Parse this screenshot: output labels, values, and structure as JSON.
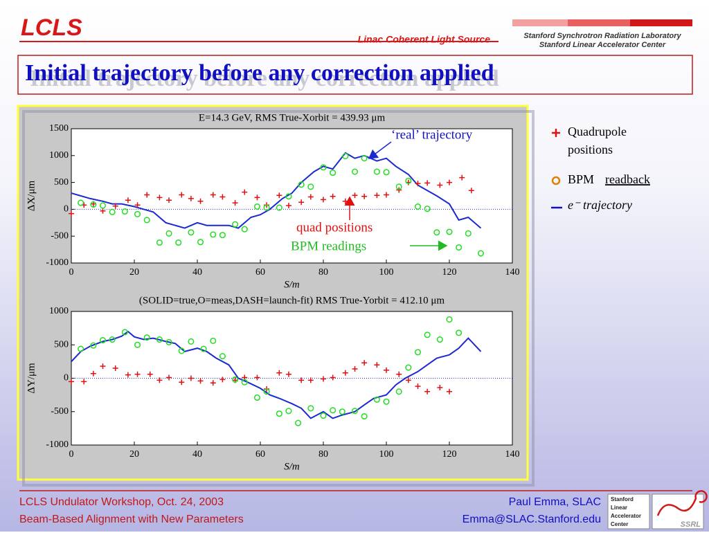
{
  "header": {
    "logo": "LCLS",
    "subtitle": "Linac Coherent Light Source",
    "lab": [
      "Stanford Synchrotron Radiation Laboratory",
      "Stanford Linear Accelerator Center"
    ]
  },
  "title": "Initial trajectory before any correction applied",
  "legend": [
    {
      "lines": [
        "Quadrupole",
        "positions"
      ]
    },
    {
      "lines": [
        "BPM",
        "readback"
      ]
    },
    {
      "lines": [
        "e⁻ trajectory"
      ]
    }
  ],
  "annotations": [
    "‘real’ trajectory",
    "quad positions",
    "BPM readings"
  ],
  "footer": {
    "left": [
      "LCLS Undulator Workshop, Oct. 24, 2003",
      "Beam-Based Alignment with New Parameters"
    ],
    "right": [
      "Paul Emma, SLAC",
      "Emma@SLAC.Stanford.edu"
    ],
    "logo": [
      "Stanford",
      "Linear",
      "Accelerator",
      "Center"
    ],
    "ssrl": "SSRL"
  },
  "chart_data": [
    {
      "type": "line",
      "title": "E=14.3 GeV, RMS True-Xorbit =  439.93 μm",
      "xlabel": "S/m",
      "ylabel": "ΔX/μm",
      "xlim": [
        0,
        140
      ],
      "xticks": [
        0,
        20,
        40,
        60,
        80,
        100,
        120,
        140
      ],
      "ylim": [
        -1000,
        1500
      ],
      "yticks": [
        -1000,
        -500,
        0,
        500,
        1000,
        1500
      ],
      "series": [
        {
          "style": "line",
          "color": "#1a2ad0",
          "x": [
            0,
            3,
            6,
            10,
            13,
            16,
            20,
            23,
            26,
            30,
            33,
            36,
            40,
            43,
            46,
            50,
            53,
            57,
            60,
            63,
            67,
            70,
            73,
            77,
            80,
            83,
            87,
            90,
            93,
            97,
            100,
            103,
            107,
            110,
            113,
            116,
            120,
            123,
            126,
            130
          ],
          "values": [
            300,
            250,
            200,
            150,
            100,
            100,
            50,
            0,
            -50,
            -250,
            -300,
            -350,
            -250,
            -300,
            -300,
            -300,
            -350,
            -150,
            -100,
            0,
            200,
            300,
            500,
            700,
            800,
            750,
            1050,
            950,
            1000,
            900,
            950,
            800,
            650,
            450,
            350,
            250,
            100,
            -200,
            -150,
            -350
          ]
        },
        {
          "style": "plus",
          "color": "#e01010",
          "x": [
            0,
            4,
            7,
            10,
            14,
            18,
            21,
            24,
            28,
            31,
            35,
            38,
            41,
            45,
            48,
            52,
            55,
            59,
            62,
            66,
            69,
            73,
            76,
            80,
            83,
            87,
            90,
            93,
            97,
            100,
            104,
            107,
            110,
            113,
            117,
            120,
            124,
            127
          ],
          "values": [
            -80,
            80,
            100,
            -30,
            60,
            170,
            80,
            270,
            220,
            170,
            270,
            200,
            150,
            270,
            230,
            120,
            320,
            220,
            80,
            260,
            70,
            130,
            230,
            180,
            240,
            150,
            260,
            240,
            260,
            270,
            360,
            500,
            480,
            490,
            450,
            500,
            590,
            350
          ]
        },
        {
          "style": "circle",
          "color": "#22dd22",
          "x": [
            3,
            7,
            10,
            13,
            17,
            21,
            24,
            28,
            31,
            34,
            38,
            41,
            45,
            48,
            52,
            55,
            59,
            62,
            66,
            69,
            73,
            76,
            80,
            83,
            87,
            90,
            93,
            97,
            100,
            104,
            107,
            110,
            113,
            116,
            120,
            123,
            126,
            130
          ],
          "values": [
            120,
            90,
            70,
            -50,
            -40,
            -90,
            -200,
            -620,
            -450,
            -620,
            -430,
            -610,
            -470,
            -480,
            -280,
            -370,
            50,
            30,
            30,
            240,
            460,
            420,
            780,
            680,
            990,
            700,
            950,
            700,
            690,
            420,
            530,
            50,
            10,
            -430,
            -420,
            -710,
            -450,
            -820
          ]
        }
      ]
    },
    {
      "type": "line",
      "title": "(SOLID=true,O=meas,DASH=launch-fit) RMS True-Yorbit =  412.10 μm",
      "xlabel": "S/m",
      "ylabel": "ΔY/μm",
      "xlim": [
        0,
        140
      ],
      "xticks": [
        0,
        20,
        40,
        60,
        80,
        100,
        120,
        140
      ],
      "ylim": [
        -1000,
        1000
      ],
      "yticks": [
        -1000,
        -500,
        0,
        500,
        1000
      ],
      "series": [
        {
          "style": "line",
          "color": "#1a2ad0",
          "x": [
            0,
            3,
            6,
            10,
            13,
            16,
            18,
            20,
            23,
            26,
            30,
            33,
            36,
            40,
            43,
            46,
            50,
            53,
            56,
            60,
            63,
            66,
            70,
            73,
            76,
            80,
            83,
            86,
            90,
            93,
            96,
            100,
            103,
            106,
            110,
            113,
            116,
            120,
            123,
            126,
            130
          ],
          "values": [
            250,
            400,
            480,
            550,
            580,
            630,
            700,
            620,
            580,
            600,
            550,
            520,
            400,
            450,
            400,
            300,
            200,
            0,
            -60,
            -150,
            -250,
            -300,
            -380,
            -450,
            -600,
            -500,
            -600,
            -550,
            -500,
            -400,
            -300,
            -250,
            -100,
            0,
            100,
            200,
            300,
            350,
            450,
            600,
            400
          ]
        },
        {
          "style": "plus",
          "color": "#e01010",
          "x": [
            0,
            4,
            7,
            10,
            14,
            18,
            21,
            25,
            28,
            31,
            35,
            38,
            41,
            45,
            48,
            52,
            55,
            59,
            62,
            66,
            69,
            73,
            76,
            80,
            83,
            87,
            90,
            93,
            97,
            100,
            104,
            107,
            110,
            113,
            117,
            120
          ],
          "values": [
            -50,
            -50,
            70,
            180,
            150,
            50,
            60,
            60,
            -30,
            10,
            -60,
            0,
            -40,
            -70,
            -20,
            -30,
            10,
            10,
            -160,
            80,
            60,
            -30,
            -30,
            -10,
            10,
            80,
            140,
            230,
            200,
            120,
            60,
            -30,
            -120,
            -200,
            -140,
            -200
          ]
        },
        {
          "style": "circle",
          "color": "#22dd22",
          "x": [
            3,
            7,
            10,
            13,
            17,
            21,
            24,
            28,
            31,
            35,
            38,
            42,
            45,
            48,
            52,
            55,
            59,
            62,
            66,
            69,
            72,
            76,
            80,
            83,
            86,
            90,
            93,
            97,
            100,
            104,
            107,
            110,
            113,
            117,
            120,
            123
          ],
          "values": [
            440,
            490,
            570,
            580,
            690,
            500,
            610,
            580,
            540,
            410,
            550,
            440,
            560,
            330,
            -20,
            -60,
            -290,
            -200,
            -530,
            -490,
            -670,
            -450,
            -560,
            -480,
            -500,
            -490,
            -570,
            -320,
            -350,
            -200,
            160,
            390,
            650,
            580,
            880,
            680
          ]
        }
      ]
    }
  ]
}
